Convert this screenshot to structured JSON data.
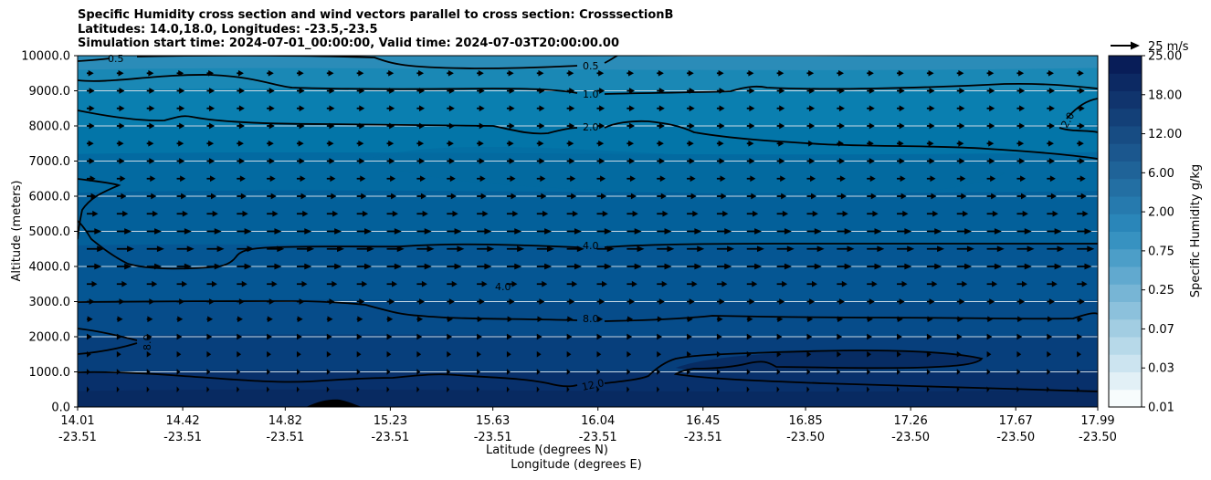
{
  "chart_data": {
    "type": "heatmap",
    "title_lines": [
      "Specific Humidity cross section and wind vectors parallel to cross section: CrosssectionB",
      "Latitudes: 14.0,18.0, Longitudes: -23.5,-23.5",
      "Simulation start time: 2024-07-01_00:00:00, Valid time: 2024-07-03T20:00:00.00"
    ],
    "ylabel": "Altitude (meters)",
    "xlabel_lat": "Latitude (degrees N)",
    "xlabel_lon": "Longitude (degrees E)",
    "ylim": [
      0,
      10000
    ],
    "xlim": [
      14.01,
      17.99
    ],
    "y_ticks": [
      "0.0",
      "1000.0",
      "2000.0",
      "3000.0",
      "4000.0",
      "5000.0",
      "6000.0",
      "7000.0",
      "8000.0",
      "9000.0",
      "10000.0"
    ],
    "x_ticks": [
      {
        "lat": "14.01",
        "lon": "-23.51"
      },
      {
        "lat": "14.42",
        "lon": "-23.51"
      },
      {
        "lat": "14.82",
        "lon": "-23.51"
      },
      {
        "lat": "15.23",
        "lon": "-23.51"
      },
      {
        "lat": "15.63",
        "lon": "-23.51"
      },
      {
        "lat": "16.04",
        "lon": "-23.51"
      },
      {
        "lat": "16.45",
        "lon": "-23.51"
      },
      {
        "lat": "16.85",
        "lon": "-23.50"
      },
      {
        "lat": "17.26",
        "lon": "-23.50"
      },
      {
        "lat": "17.67",
        "lon": "-23.50"
      },
      {
        "lat": "17.99",
        "lon": "-23.50"
      }
    ],
    "colorbar": {
      "label": "Specific Humidity g/kg",
      "tick_labels": [
        "0.01",
        "0.03",
        "0.07",
        "0.25",
        "0.75",
        "2.00",
        "6.00",
        "12.00",
        "18.00",
        "25.00"
      ],
      "n_levels": 20
    },
    "quiver_key_label": "25 m/s",
    "contour_labels": [
      "0.5",
      "0.5",
      "1.0",
      "2.0",
      "2.0",
      "4.0",
      "4.0",
      "8.0",
      "8.0",
      "12.0"
    ],
    "humidity_layers": [
      {
        "top_alt": 10000,
        "color": "#2b8cb8"
      },
      {
        "top_alt": 9600,
        "color": "#1a88b5"
      },
      {
        "top_alt": 9000,
        "color": "#0a7fb0"
      },
      {
        "top_alt": 8000,
        "color": "#0375a8"
      },
      {
        "top_alt": 7200,
        "color": "#036aa1"
      },
      {
        "top_alt": 6100,
        "color": "#03609a"
      },
      {
        "top_alt": 4600,
        "color": "#055693"
      },
      {
        "top_alt": 3000,
        "color": "#064c8a"
      },
      {
        "top_alt": 2000,
        "color": "#073f7c"
      },
      {
        "top_alt": 1000,
        "color": "#08306b"
      },
      {
        "top_alt": 450,
        "color": "#082a61"
      }
    ],
    "wind_profile": [
      {
        "alt": 9500,
        "speed": 8
      },
      {
        "alt": 9000,
        "speed": 9
      },
      {
        "alt": 8500,
        "speed": 9
      },
      {
        "alt": 8000,
        "speed": 9
      },
      {
        "alt": 7500,
        "speed": 8
      },
      {
        "alt": 7000,
        "speed": 9
      },
      {
        "alt": 6500,
        "speed": 10
      },
      {
        "alt": 6000,
        "speed": 11
      },
      {
        "alt": 5500,
        "speed": 13
      },
      {
        "alt": 5000,
        "speed": 17
      },
      {
        "alt": 4500,
        "speed": 20
      },
      {
        "alt": 4000,
        "speed": 17
      },
      {
        "alt": 3500,
        "speed": 12
      },
      {
        "alt": 3000,
        "speed": 9
      },
      {
        "alt": 2500,
        "speed": 7
      },
      {
        "alt": 2000,
        "speed": 6
      },
      {
        "alt": 1500,
        "speed": 5
      },
      {
        "alt": 1000,
        "speed": 4
      },
      {
        "alt": 500,
        "speed": 3
      }
    ]
  }
}
